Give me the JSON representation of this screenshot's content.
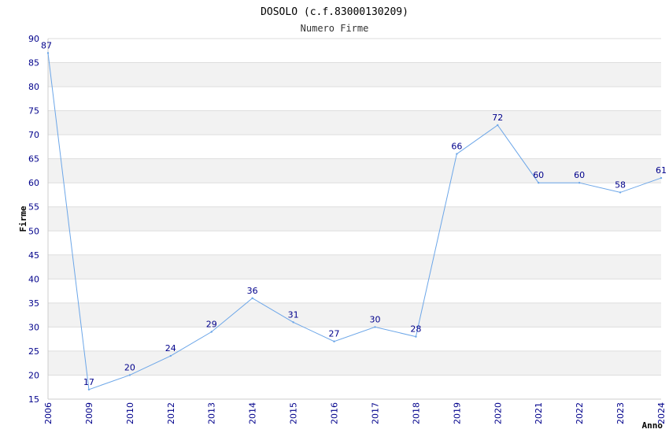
{
  "chart_data": {
    "type": "line",
    "title": "DOSOLO (c.f.83000130209)",
    "subtitle": "Numero Firme",
    "xlabel": "Anno",
    "ylabel": "Firme",
    "categories": [
      "2006",
      "2009",
      "2010",
      "2012",
      "2013",
      "2014",
      "2015",
      "2016",
      "2017",
      "2018",
      "2019",
      "2020",
      "2021",
      "2022",
      "2023",
      "2024"
    ],
    "series": [
      {
        "values": [
          87,
          17,
          20,
          24,
          29,
          36,
          31,
          27,
          30,
          28,
          66,
          72,
          60,
          60,
          58,
          61
        ]
      }
    ],
    "ylim": [
      15,
      90
    ],
    "ytick_step": 5,
    "grid": true,
    "colors": {
      "line": "#6ca6e8",
      "band": "#f2f2f2",
      "grid": "#dddddd",
      "text": "#00008b"
    }
  }
}
